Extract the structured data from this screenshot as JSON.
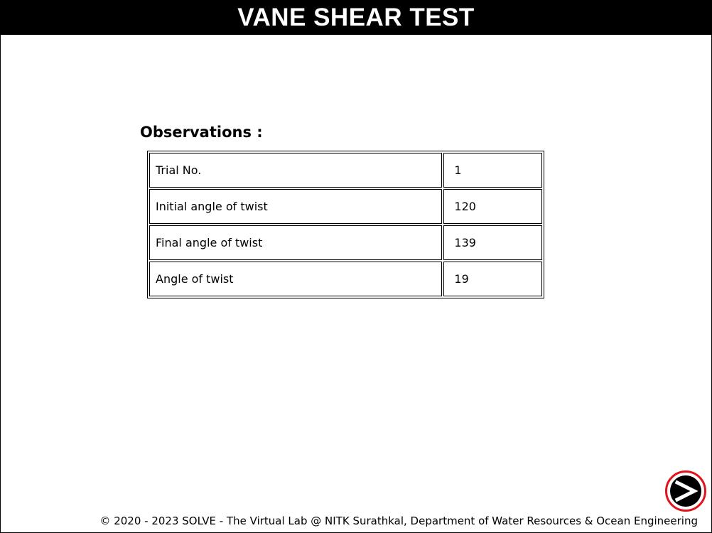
{
  "header": {
    "title": "VANE SHEAR TEST"
  },
  "observations": {
    "title": "Observations :",
    "rows": [
      {
        "label": "Trial No.",
        "value": "1"
      },
      {
        "label": "Initial angle of twist",
        "value": "120"
      },
      {
        "label": "Final angle of twist",
        "value": "139"
      },
      {
        "label": "Angle of twist",
        "value": "19"
      }
    ]
  },
  "navigation": {
    "next_icon": "next-arrow-icon",
    "ring_color": "#e3131b"
  },
  "footer": {
    "text": "© 2020 - 2023 SOLVE - The Virtual Lab @ NITK Surathkal, Department of Water Resources & Ocean Engineering"
  }
}
